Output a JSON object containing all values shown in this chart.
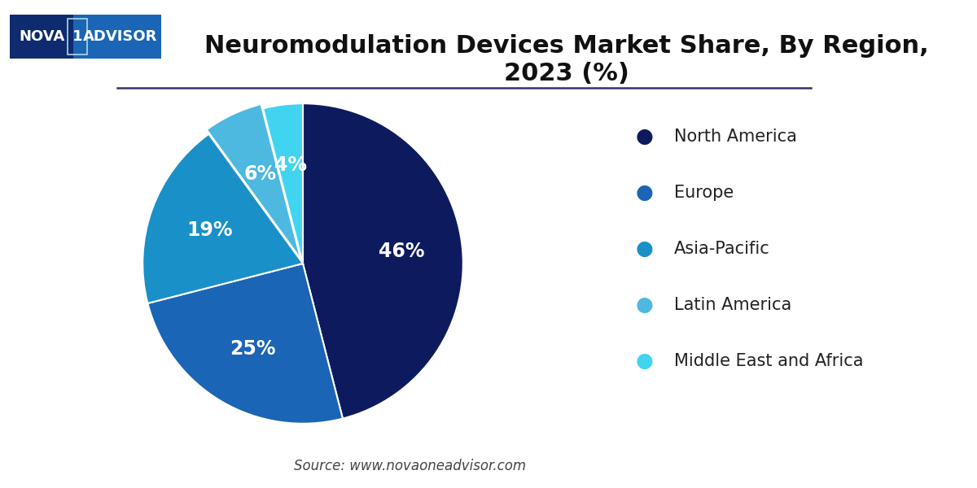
{
  "title": "Neuromodulation Devices Market Share, By Region,\n2023 (%)",
  "slices": [
    46,
    25,
    19,
    6,
    4
  ],
  "labels": [
    "North America",
    "Europe",
    "Asia-Pacific",
    "Latin America",
    "Middle East and Africa"
  ],
  "colors": [
    "#0d1b5e",
    "#1a65b5",
    "#1a90c8",
    "#4db8e0",
    "#40d4f0"
  ],
  "pct_labels": [
    "46%",
    "25%",
    "19%",
    "6%",
    "4%"
  ],
  "source_text": "Source: www.novaoneadvisor.com",
  "background_color": "#ffffff",
  "title_fontsize": 22,
  "legend_fontsize": 15,
  "pct_fontsize": 17,
  "source_fontsize": 12,
  "startangle": 90,
  "explode": [
    0,
    0,
    0,
    0.03,
    0
  ]
}
